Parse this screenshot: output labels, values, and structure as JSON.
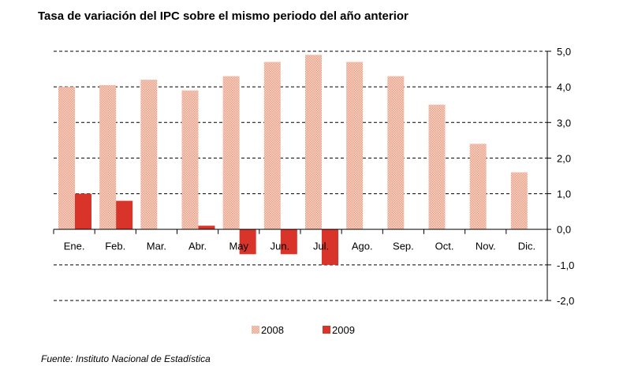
{
  "chart_data": {
    "type": "bar",
    "title": "Tasa de variación del IPC sobre el mismo periodo del año anterior",
    "categories": [
      "Ene.",
      "Feb.",
      "Mar.",
      "Abr.",
      "May",
      "Jun.",
      "Jul.",
      "Ago.",
      "Sep.",
      "Oct.",
      "Nov.",
      "Dic."
    ],
    "series": [
      {
        "name": "2008",
        "color": "#f2c0ac",
        "values": [
          4.0,
          4.05,
          4.2,
          3.9,
          4.3,
          4.7,
          4.9,
          4.7,
          4.3,
          3.5,
          2.4,
          1.6
        ]
      },
      {
        "name": "2009",
        "color": "#d8342a",
        "values": [
          1.0,
          0.8,
          null,
          0.1,
          -0.7,
          -0.7,
          -1.0,
          null,
          null,
          null,
          null,
          null
        ]
      }
    ],
    "ylim": [
      -2.0,
      5.0
    ],
    "yticks": [
      "5,0",
      "4,0",
      "3,0",
      "2,0",
      "1,0",
      "0,0",
      "-1,0",
      "-2,0"
    ],
    "ytick_values": [
      5,
      4,
      3,
      2,
      1,
      0,
      -1,
      -2
    ],
    "xlabel": "",
    "ylabel": "",
    "y_axis_side": "right",
    "grid": true,
    "legend_position": "bottom-center"
  },
  "source": "Fuente: Instituto Nacional de Estadística"
}
